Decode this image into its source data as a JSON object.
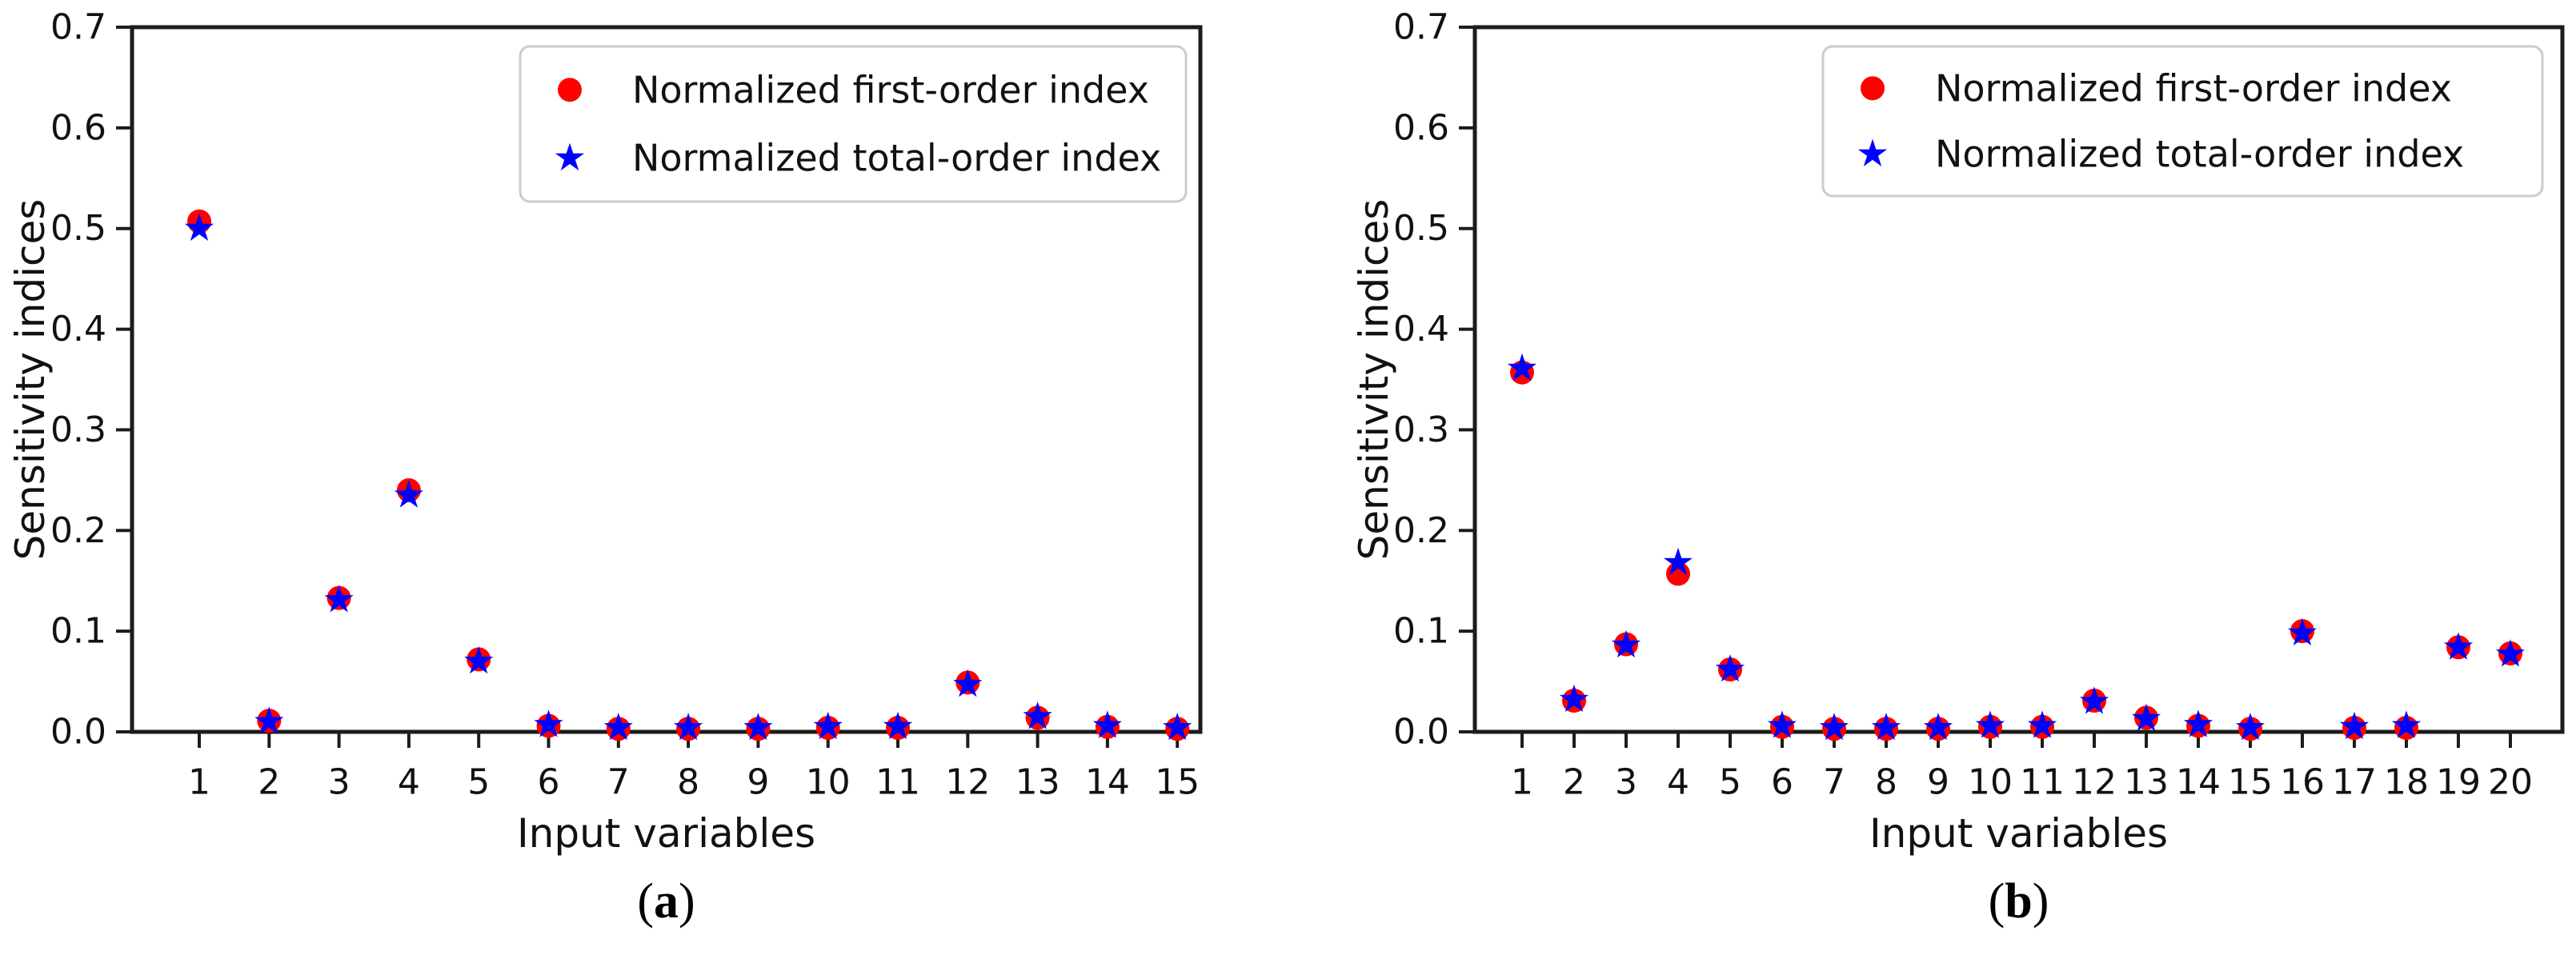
{
  "figure": {
    "background": "#ffffff",
    "axis_color": "#1c1c1c",
    "text_color": "#111111",
    "legend_border_color": "#cccccc",
    "series_colors": {
      "first_order": "#ff0000",
      "total_order": "#0000ff"
    }
  },
  "chart_data": [
    {
      "type": "scatter",
      "caption": {
        "open": "(",
        "letter": "a",
        "close": ")"
      },
      "xlabel": "Input variables",
      "ylabel": "Sensitivity indices",
      "ylim": [
        0.0,
        0.7
      ],
      "y_ticks": [
        0.0,
        0.1,
        0.2,
        0.3,
        0.4,
        0.5,
        0.6,
        0.7
      ],
      "y_tick_labels": [
        "0.0",
        "0.1",
        "0.2",
        "0.3",
        "0.4",
        "0.5",
        "0.6",
        "0.7"
      ],
      "categories": [
        1,
        2,
        3,
        4,
        5,
        6,
        7,
        8,
        9,
        10,
        11,
        12,
        13,
        14,
        15
      ],
      "grid": false,
      "legend_position": "upper right",
      "series": [
        {
          "name": "Normalized first-order index",
          "marker": "circle",
          "color": "#ff0000",
          "values": [
            0.507,
            0.011,
            0.133,
            0.24,
            0.072,
            0.006,
            0.003,
            0.003,
            0.003,
            0.004,
            0.004,
            0.049,
            0.014,
            0.005,
            0.003
          ]
        },
        {
          "name": "Normalized total-order index",
          "marker": "star",
          "color": "#0000ff",
          "values": [
            0.5,
            0.01,
            0.131,
            0.235,
            0.07,
            0.007,
            0.004,
            0.004,
            0.004,
            0.005,
            0.005,
            0.047,
            0.015,
            0.006,
            0.004
          ]
        }
      ]
    },
    {
      "type": "scatter",
      "caption": {
        "open": "(",
        "letter": "b",
        "close": ")"
      },
      "xlabel": "Input variables",
      "ylabel": "Sensitivity indices",
      "ylim": [
        0.0,
        0.7
      ],
      "y_ticks": [
        0.0,
        0.1,
        0.2,
        0.3,
        0.4,
        0.5,
        0.6,
        0.7
      ],
      "y_tick_labels": [
        "0.0",
        "0.1",
        "0.2",
        "0.3",
        "0.4",
        "0.5",
        "0.6",
        "0.7"
      ],
      "categories": [
        1,
        2,
        3,
        4,
        5,
        6,
        7,
        8,
        9,
        10,
        11,
        12,
        13,
        14,
        15,
        16,
        17,
        18,
        19,
        20
      ],
      "grid": false,
      "legend_position": "upper right",
      "series": [
        {
          "name": "Normalized first-order index",
          "marker": "circle",
          "color": "#ff0000",
          "values": [
            0.357,
            0.031,
            0.087,
            0.157,
            0.062,
            0.005,
            0.003,
            0.003,
            0.003,
            0.005,
            0.005,
            0.031,
            0.014,
            0.006,
            0.003,
            0.1,
            0.004,
            0.004,
            0.084,
            0.078
          ]
        },
        {
          "name": "Normalized total-order index",
          "marker": "star",
          "color": "#0000ff",
          "values": [
            0.361,
            0.032,
            0.086,
            0.168,
            0.062,
            0.006,
            0.004,
            0.004,
            0.004,
            0.006,
            0.006,
            0.03,
            0.013,
            0.007,
            0.004,
            0.098,
            0.005,
            0.006,
            0.084,
            0.077
          ]
        }
      ]
    }
  ]
}
